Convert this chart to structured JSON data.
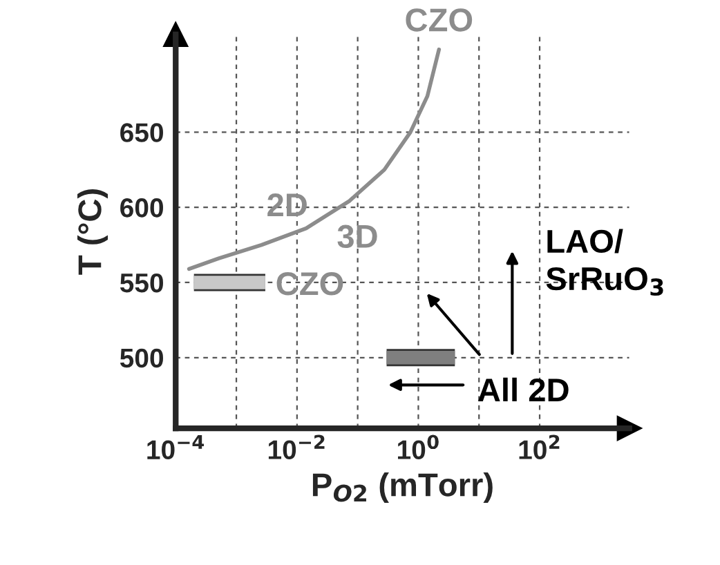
{
  "chart_data": {
    "type": "line",
    "xlabel": "P$_{O2}$ (mTorr)",
    "ylabel": "T (°C)",
    "log": "x",
    "grid": true,
    "xlim": [
      0.0001,
      3000
    ],
    "ylim": [
      453,
      715
    ],
    "xticks": [
      {
        "value": 0.0001,
        "label": "10$^{−4}$"
      },
      {
        "value": 0.001,
        "label": null
      },
      {
        "value": 0.01,
        "label": "10$^{−2}$"
      },
      {
        "value": 0.1,
        "label": null
      },
      {
        "value": 1,
        "label": "10$^{0}$"
      },
      {
        "value": 10,
        "label": null
      },
      {
        "value": 100,
        "label": "10$^{2}$"
      }
    ],
    "yticks": [
      500,
      550,
      600,
      650
    ],
    "series": [
      {
        "color": "#8c8c8c",
        "x": [
          0.000166,
          0.00051,
          0.0026,
          0.0141,
          0.072,
          0.275,
          0.74,
          1.41,
          2.19
        ],
        "values": [
          559,
          566,
          575,
          586,
          604,
          625,
          650,
          674,
          705
        ]
      },
      {
        "color": "#c8c8c8",
        "x": [
          0.0002,
          0.003
        ],
        "values": [
          550,
          550
        ]
      },
      {
        "color": "#7f7f7f",
        "x": [
          0.3,
          4
        ],
        "values": [
          500,
          500
        ]
      }
    ],
    "annotations": [
      {
        "text": "CZO",
        "x": 2.19,
        "y": 705
      },
      "2D",
      "3D",
      "CZO",
      "LAO/\nSrRuO$_{3}$",
      "All 2D"
    ]
  }
}
